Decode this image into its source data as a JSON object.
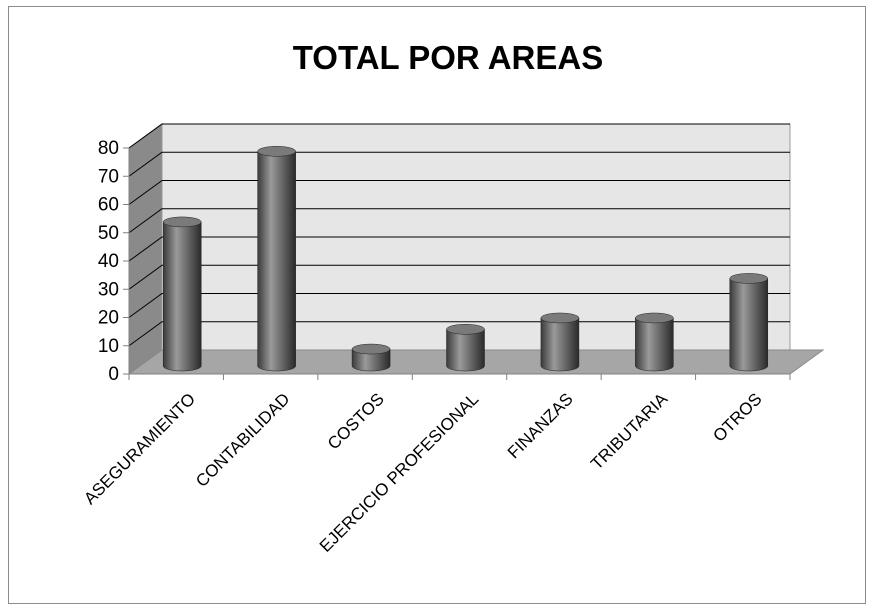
{
  "chart_data": {
    "type": "bar",
    "title": "TOTAL POR AREAS",
    "categories": [
      "ASEGURAMIENTO",
      "CONTABILIDAD",
      "COSTOS",
      "EJERCICIO PROFESIONAL",
      "FINANZAS",
      "TRIBUTARIA",
      "OTROS"
    ],
    "values": [
      51,
      76,
      6,
      13,
      17,
      17,
      31
    ],
    "ylim": [
      0,
      80
    ],
    "yticks": [
      "0",
      "10",
      "20",
      "30",
      "40",
      "50",
      "60",
      "70",
      "80"
    ],
    "xlabel": "",
    "ylabel": "",
    "grid": true,
    "legend": "none",
    "colors": {
      "bar_light": "#9a9a9a",
      "bar_dark": "#2f2f2f",
      "wall": "#e6e6e6",
      "floor": "#a6a6a6",
      "side_wall": "#8a8a8a",
      "gridline": "#000000"
    }
  }
}
